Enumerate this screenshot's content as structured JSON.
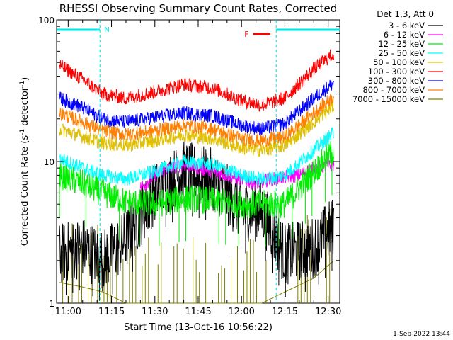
{
  "chart_data": {
    "type": "line",
    "title": "RHESSI Observing Summary Count Rates, Corrected",
    "xlabel": "Start Time (13-Oct-16 10:56:22)",
    "ylabel_main": "Corrected Count Rate (s",
    "ylabel_sup1": "-1",
    "ylabel_mid": " detector",
    "ylabel_sup2": "-1",
    "ylabel_end": ")",
    "y_scale": "log",
    "ylim": [
      1,
      100
    ],
    "xlim": [
      "10:56",
      "12:34"
    ],
    "x_tick_labels": [
      "11:00",
      "11:15",
      "11:30",
      "11:45",
      "12:00",
      "12:15",
      "12:30"
    ],
    "y_tick_labels": [
      "1",
      "10",
      "100"
    ],
    "legend_title": "Det 1,3, Att 0",
    "legend_position": "right",
    "night_intervals": [
      [
        "10:56",
        "11:11"
      ],
      [
        "12:12",
        "12:34"
      ]
    ],
    "saa_marker": "N",
    "flare_marker": "F",
    "flare_interval": [
      "12:04",
      "12:10"
    ],
    "footer_timestamp": "1-Sep-2022 13:44",
    "colors": {
      "background": "#ffffff",
      "axes": "#000000",
      "night_bar": "#00e5e5",
      "flare_bar": "#ff0000"
    },
    "series": [
      {
        "name": "3 - 6 keV",
        "color": "#000000",
        "x": [
          "10:57",
          "11:05",
          "11:12",
          "11:20",
          "11:30",
          "11:40",
          "11:50",
          "12:00",
          "12:07",
          "12:15",
          "12:25",
          "12:32"
        ],
        "y": [
          2.2,
          2.5,
          2.0,
          2.8,
          6.0,
          8.5,
          7.5,
          4.5,
          4.5,
          2.2,
          2.5,
          3.5
        ]
      },
      {
        "name": "6 - 12 keV",
        "color": "#ff00ff",
        "x": [
          "11:25",
          "11:30",
          "11:35",
          "11:40",
          "11:45",
          "11:50",
          "11:55",
          "12:00",
          "12:05",
          "12:10",
          "12:20",
          "12:25",
          "12:32"
        ],
        "y": [
          6.5,
          8.0,
          9.0,
          9.5,
          9.0,
          8.5,
          8.0,
          7.5,
          7.0,
          7.5,
          8.0,
          9.0,
          9.5
        ]
      },
      {
        "name": "12 - 25 keV",
        "color": "#00ee00",
        "x": [
          "10:57",
          "11:05",
          "11:12",
          "11:20",
          "11:30",
          "11:40",
          "11:50",
          "12:00",
          "12:07",
          "12:15",
          "12:25",
          "12:32"
        ],
        "y": [
          8.0,
          7.0,
          6.0,
          5.2,
          5.0,
          5.5,
          5.3,
          5.0,
          5.0,
          5.0,
          8.5,
          12.0
        ]
      },
      {
        "name": "25 - 50 keV",
        "color": "#00ffff",
        "x": [
          "10:57",
          "11:05",
          "11:12",
          "11:20",
          "11:30",
          "11:40",
          "11:50",
          "12:00",
          "12:07",
          "12:15",
          "12:25",
          "12:32"
        ],
        "y": [
          10.5,
          9.0,
          8.0,
          7.5,
          8.5,
          10.0,
          9.5,
          8.0,
          7.5,
          8.0,
          12.0,
          16.0
        ]
      },
      {
        "name": "50 - 100 keV",
        "color": "#e0c000",
        "x": [
          "10:57",
          "11:05",
          "11:12",
          "11:20",
          "11:30",
          "11:40",
          "11:50",
          "12:00",
          "12:07",
          "12:15",
          "12:25",
          "12:32"
        ],
        "y": [
          17.0,
          15.0,
          13.5,
          13.0,
          14.0,
          15.5,
          14.5,
          12.5,
          12.0,
          13.0,
          19.0,
          25.0
        ]
      },
      {
        "name": "100 - 300 keV",
        "color": "#ff0000",
        "x": [
          "10:57",
          "11:05",
          "11:12",
          "11:20",
          "11:30",
          "11:40",
          "11:50",
          "12:00",
          "12:07",
          "12:15",
          "12:25",
          "12:32"
        ],
        "y": [
          48.0,
          38.0,
          30.0,
          28.0,
          31.0,
          35.0,
          33.0,
          27.0,
          25.0,
          28.0,
          45.0,
          58.0
        ]
      },
      {
        "name": "300 - 800 keV",
        "color": "#0000ff",
        "x": [
          "10:57",
          "11:05",
          "11:12",
          "11:20",
          "11:30",
          "11:40",
          "11:50",
          "12:00",
          "12:07",
          "12:15",
          "12:25",
          "12:32"
        ],
        "y": [
          28.0,
          24.0,
          20.0,
          19.0,
          20.5,
          22.0,
          21.0,
          18.0,
          17.0,
          18.5,
          28.0,
          36.0
        ]
      },
      {
        "name": "800 - 7000 keV",
        "color": "#ff7f00",
        "x": [
          "10:57",
          "11:05",
          "11:12",
          "11:20",
          "11:30",
          "11:40",
          "11:50",
          "12:00",
          "12:07",
          "12:15",
          "12:25",
          "12:32"
        ],
        "y": [
          22.0,
          19.0,
          16.5,
          15.5,
          16.5,
          18.0,
          17.0,
          14.5,
          14.0,
          15.0,
          22.0,
          29.0
        ]
      },
      {
        "name": "7000 - 15000 keV",
        "color": "#808000",
        "x": [
          "10:57",
          "11:05",
          "11:12",
          "11:20",
          "11:30",
          "11:40",
          "11:50",
          "12:00",
          "12:07",
          "12:15",
          "12:25",
          "12:32"
        ],
        "y": [
          1.4,
          1.3,
          1.2,
          1.0,
          1.0,
          1.0,
          1.0,
          1.0,
          1.0,
          1.2,
          1.5,
          2.0
        ]
      }
    ]
  }
}
